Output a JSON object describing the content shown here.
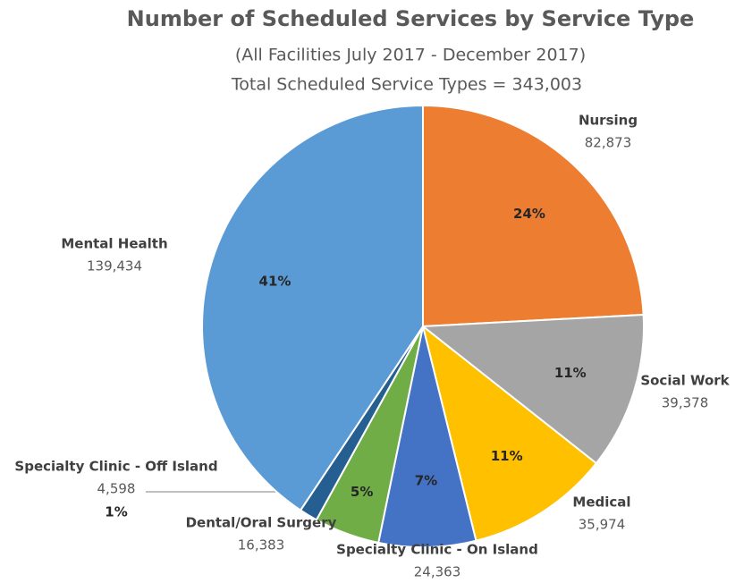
{
  "chart_data": {
    "type": "pie",
    "title": "Number of Scheduled Services by Service Type",
    "subtitle": "(All Facilities July 2017 - December 2017)",
    "total_label": "Total Scheduled Service Types = 343,003",
    "categories": [
      "Nursing",
      "Social Work",
      "Medical",
      "Specialty Clinic - On Island",
      "Dental/Oral Surgery",
      "Specialty Clinic - Off Island",
      "Mental Health"
    ],
    "values": [
      82873,
      39378,
      35974,
      24363,
      16383,
      4598,
      139434
    ],
    "value_labels": [
      "82,873",
      "39,378",
      "35,974",
      "24,363",
      "16,383",
      "4,598",
      "139,434"
    ],
    "percent_labels": [
      "24%",
      "11%",
      "11%",
      "7%",
      "5%",
      "1%",
      "41%"
    ],
    "colors": [
      "#ed7d31",
      "#a5a5a5",
      "#ffc000",
      "#4472c4",
      "#70ad47",
      "#255e91",
      "#5b9bd5"
    ]
  }
}
